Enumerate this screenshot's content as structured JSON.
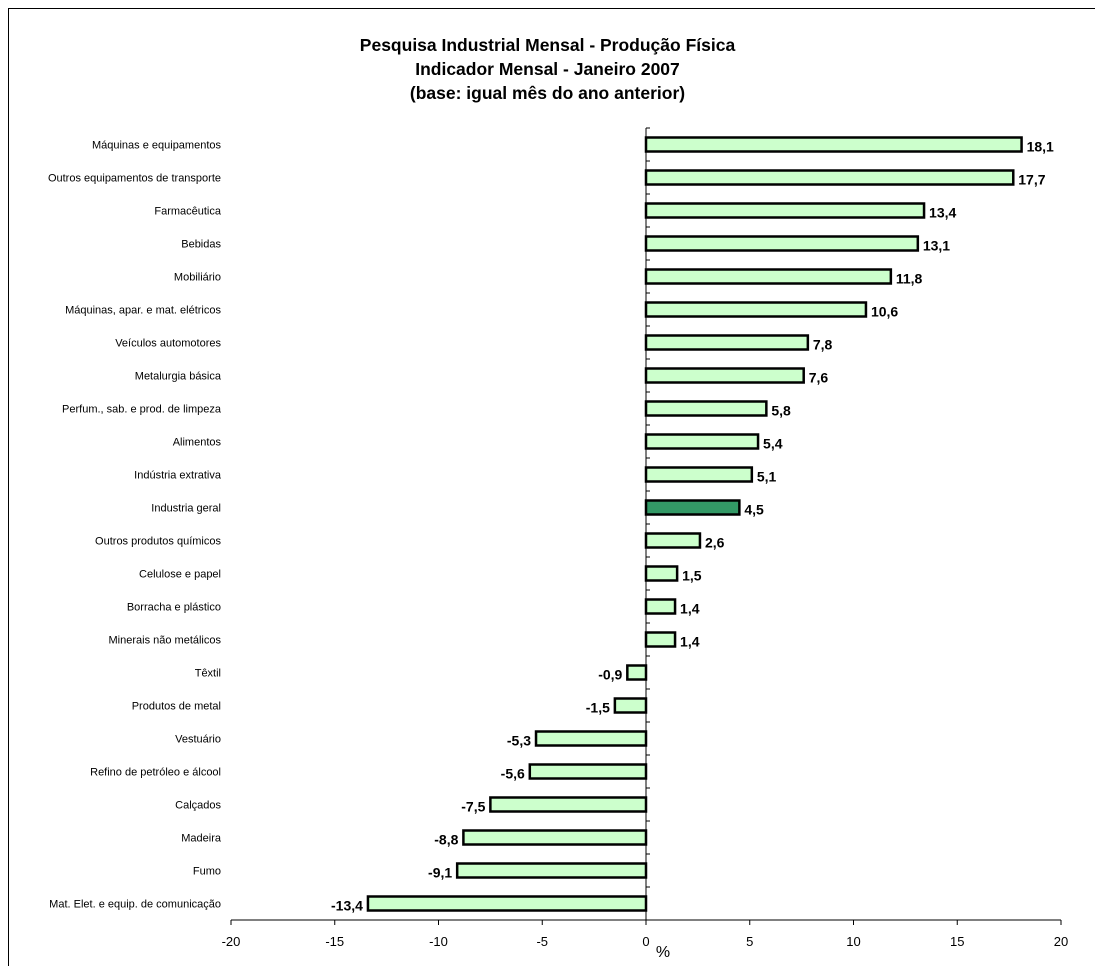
{
  "chart_data": {
    "type": "bar",
    "orientation": "horizontal",
    "title": [
      "Pesquisa Industrial Mensal - Produção Física",
      "Indicador Mensal - Janeiro 2007",
      "(base: igual mês do ano anterior)"
    ],
    "xlabel": "%",
    "xlim": [
      -20,
      20
    ],
    "xticks": [
      "-20",
      "-15",
      "-10",
      "-5",
      "0",
      "5",
      "10",
      "15",
      "20"
    ],
    "categories": [
      "Máquinas e equipamentos",
      "Outros equipamentos de transporte",
      "Farmacêutica",
      "Bebidas",
      "Mobiliário",
      "Máquinas, apar. e mat. elétricos",
      "Veículos automotores",
      "Metalurgia básica",
      "Perfum., sab. e prod. de limpeza",
      "Alimentos",
      "Indústria extrativa",
      "Industria geral",
      "Outros produtos químicos",
      "Celulose e papel",
      "Borracha e plástico",
      "Minerais não metálicos",
      "Têxtil",
      "Produtos de metal",
      "Vestuário",
      "Refino de petróleo e álcool",
      "Calçados",
      "Madeira",
      "Fumo",
      "Mat. Elet. e equip. de comunicação"
    ],
    "values": [
      18.1,
      17.7,
      13.4,
      13.1,
      11.8,
      10.6,
      7.8,
      7.6,
      5.8,
      5.4,
      5.1,
      4.5,
      2.6,
      1.5,
      1.4,
      1.4,
      -0.9,
      -1.5,
      -5.3,
      -5.6,
      -7.5,
      -8.8,
      -9.1,
      -13.4
    ],
    "value_labels": [
      "18,1",
      "17,7",
      "13,4",
      "13,1",
      "11,8",
      "10,6",
      "7,8",
      "7,6",
      "5,8",
      "5,4",
      "5,1",
      "4,5",
      "2,6",
      "1,5",
      "1,4",
      "1,4",
      "-0,9",
      "-1,5",
      "-5,3",
      "-5,6",
      "-7,5",
      "-8,8",
      "-9,1",
      "-13,4"
    ],
    "highlight_category": "Industria geral",
    "colors": {
      "bar_fill": "#ccffcc",
      "highlight_fill": "#339966",
      "bar_stroke": "#000000"
    },
    "grid": false,
    "legend": "none"
  }
}
